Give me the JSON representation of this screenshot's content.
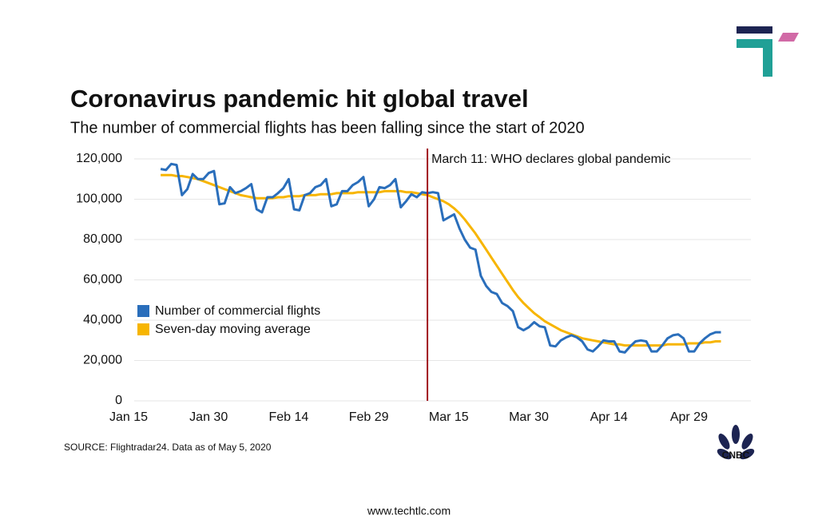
{
  "chart_data": {
    "type": "line",
    "title": "Coronavirus pandemic hit global travel",
    "subtitle": "The number of commercial flights has been falling since the start of 2020",
    "source": "SOURCE: Flightradar24. Data as of May 5, 2020",
    "brand": "CNBC",
    "website": "www.techtlc.com",
    "annotation": {
      "text": "March 11: WHO declares global pandemic",
      "x_index": 56,
      "color": "#a0141e"
    },
    "categories": [
      "Jan 15",
      null,
      null,
      null,
      null,
      null,
      null,
      null,
      null,
      null,
      null,
      null,
      null,
      null,
      null,
      "Jan 30",
      null,
      null,
      null,
      null,
      null,
      null,
      null,
      null,
      null,
      null,
      null,
      null,
      null,
      null,
      "Feb 14",
      null,
      null,
      null,
      null,
      null,
      null,
      null,
      null,
      null,
      null,
      null,
      null,
      null,
      null,
      "Feb 29",
      null,
      null,
      null,
      null,
      null,
      null,
      null,
      null,
      null,
      null,
      null,
      null,
      null,
      null,
      "Mar 15",
      null,
      null,
      null,
      null,
      null,
      null,
      null,
      null,
      null,
      null,
      null,
      null,
      null,
      null,
      "Mar 30",
      null,
      null,
      null,
      null,
      null,
      null,
      null,
      null,
      null,
      null,
      null,
      null,
      null,
      null,
      "Apr 14",
      null,
      null,
      null,
      null,
      null,
      null,
      null,
      null,
      null,
      null,
      null,
      null,
      null,
      null,
      "Apr 29",
      null,
      null,
      null,
      null,
      null,
      null
    ],
    "series": [
      {
        "name": "Number of commercial flights",
        "color": "#2a6ebb",
        "values": [
          null,
          null,
          null,
          null,
          null,
          null,
          115000,
          114500,
          117500,
          117000,
          102000,
          105000,
          112500,
          110000,
          110000,
          113000,
          114000,
          97500,
          98000,
          106000,
          103000,
          104000,
          105500,
          107500,
          95000,
          93500,
          101000,
          101000,
          103000,
          105500,
          110000,
          95000,
          94500,
          102000,
          103000,
          106000,
          107000,
          110000,
          96500,
          97500,
          104000,
          104000,
          107000,
          108500,
          111000,
          96500,
          100000,
          106000,
          105500,
          107000,
          110000,
          96000,
          99000,
          102500,
          101000,
          103500,
          103000,
          103500,
          103000,
          89500,
          91000,
          92500,
          85500,
          80000,
          76000,
          75000,
          62000,
          57000,
          54000,
          53000,
          48500,
          47000,
          44500,
          36500,
          35000,
          36500,
          39000,
          37000,
          36500,
          27500,
          27000,
          30000,
          31500,
          32500,
          31500,
          29500,
          25500,
          24500,
          27000,
          30000,
          29500,
          29500,
          24500,
          24000,
          27000,
          29500,
          30000,
          29500,
          24500,
          24500,
          27500,
          31000,
          32500,
          33000,
          31000,
          24500,
          24500,
          28500,
          31000,
          33000,
          34000,
          34000
        ]
      },
      {
        "name": "Seven-day moving average",
        "color": "#f7b500",
        "values": [
          null,
          null,
          null,
          null,
          null,
          null,
          112000,
          112000,
          112000,
          111500,
          111500,
          111000,
          110500,
          110000,
          109000,
          108000,
          107000,
          106000,
          105000,
          104000,
          103000,
          102000,
          101500,
          101000,
          100500,
          100500,
          100500,
          100500,
          101000,
          101000,
          101500,
          101500,
          101500,
          102000,
          102000,
          102000,
          102500,
          102500,
          102500,
          103000,
          103000,
          103000,
          103000,
          103500,
          103500,
          103500,
          103500,
          103500,
          104000,
          104000,
          104000,
          104000,
          103500,
          103500,
          103000,
          102500,
          102000,
          101000,
          100000,
          99000,
          97500,
          95500,
          93000,
          90000,
          86500,
          83000,
          79000,
          75000,
          71000,
          67000,
          63000,
          59000,
          55000,
          51500,
          48500,
          46000,
          43500,
          41500,
          39500,
          38000,
          36500,
          35000,
          34000,
          33000,
          32000,
          31000,
          30500,
          30000,
          29500,
          29000,
          28500,
          28000,
          28000,
          27500,
          27500,
          27500,
          27500,
          27500,
          27500,
          27500,
          27500,
          28000,
          28000,
          28000,
          28000,
          28500,
          28500,
          28500,
          29000,
          29000,
          29500,
          29500
        ]
      }
    ],
    "ylim": [
      0,
      120000
    ],
    "yticks": [
      0,
      {
        "value": 20000,
        "label": "20,000"
      },
      {
        "value": 40000,
        "label": "40,000"
      },
      {
        "value": 60000,
        "label": "60,000"
      },
      {
        "value": 80000,
        "label": "80,000"
      },
      {
        "value": 100000,
        "label": "100,000"
      },
      {
        "value": 120000,
        "label": "120,000"
      }
    ],
    "grid": true,
    "legend": "left"
  }
}
